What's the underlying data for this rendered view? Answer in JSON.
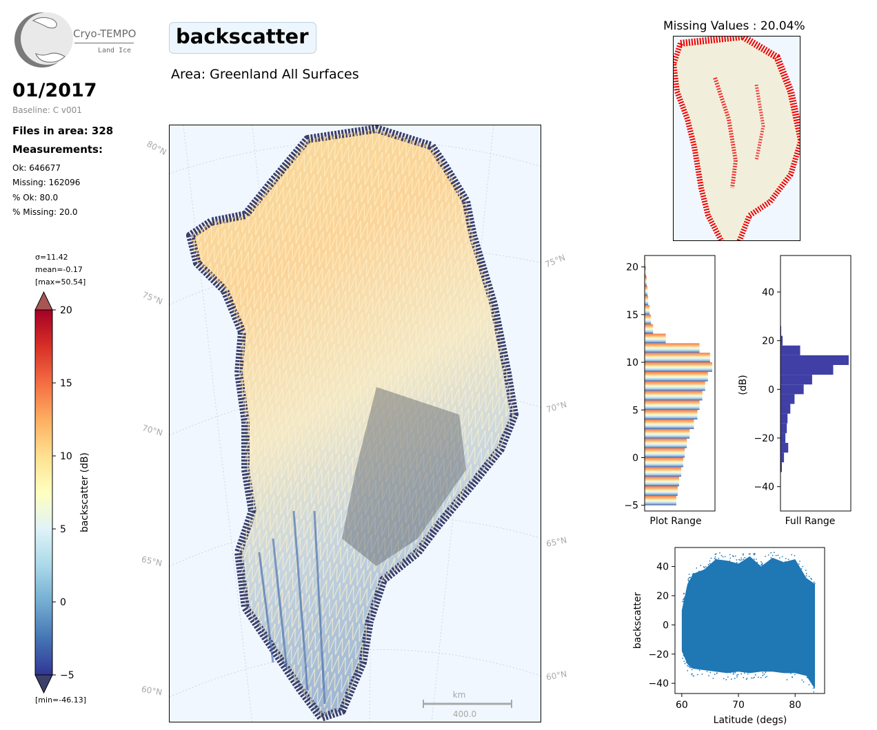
{
  "logo": {
    "name": "Cryo-TEMPO",
    "subtitle": "Land Ice",
    "icon": "globe-logo-icon"
  },
  "date": "01/2017",
  "baseline": "Baseline: C v001",
  "files_in_area": "Files in area: 328",
  "measurements_label": "Measurements:",
  "stats": {
    "ok": "Ok: 646677",
    "missing": "Missing: 162096",
    "pct_ok": "% Ok: 80.0",
    "pct_missing": "% Missing: 20.0"
  },
  "title": "backscatter",
  "area": "Area: Greenland All Surfaces",
  "colorbar": {
    "sigma": "σ=11.42",
    "mean": "mean=-0.17",
    "max": "[max=50.54]",
    "min": "[min=-46.13]",
    "label": "backscatter (dB)",
    "ticks": [
      "20",
      "15",
      "10",
      "5",
      "0",
      "−5"
    ],
    "range": [
      -5,
      20
    ]
  },
  "map": {
    "lat_labels_left": [
      "80°N",
      "75°N",
      "70°N",
      "65°N",
      "60°N"
    ],
    "lat_labels_right": [
      "75°N",
      "70°N",
      "65°N",
      "60°N"
    ],
    "scalebar_unit": "km",
    "scalebar_value": "400.0",
    "ocean_color": "#f0f7fe"
  },
  "missing_map": {
    "title": "Missing Values : 20.04%",
    "land_color": "#f1efdc",
    "missing_color": "#ee0000"
  },
  "chart_data": [
    {
      "type": "bar",
      "orientation": "horizontal",
      "xlabel": "Plot Range",
      "ylabel": "",
      "ylim": [
        -5.6,
        21.2
      ],
      "yticks": [
        -5,
        0,
        5,
        10,
        15,
        20
      ],
      "bins_y": [
        -5,
        -4,
        -3,
        -2,
        -1,
        0,
        1,
        2,
        3,
        4,
        5,
        6,
        7,
        8,
        9,
        10,
        11,
        12,
        13,
        14,
        15,
        16,
        17,
        18,
        19,
        20
      ],
      "counts": [
        0.45,
        0.47,
        0.49,
        0.52,
        0.55,
        0.57,
        0.6,
        0.64,
        0.7,
        0.75,
        0.78,
        0.82,
        0.86,
        0.9,
        0.96,
        0.93,
        0.78,
        0.3,
        0.12,
        0.09,
        0.07,
        0.05,
        0.04,
        0.03,
        0.02,
        0.01
      ]
    },
    {
      "type": "bar",
      "orientation": "horizontal",
      "xlabel": "Full Range",
      "ylabel": "(dB)",
      "ylim": [
        -50,
        55
      ],
      "yticks": [
        -40,
        -20,
        0,
        20,
        40
      ],
      "bins_y": [
        -34,
        -30,
        -26,
        -22,
        -18,
        -14,
        -10,
        -6,
        -2,
        2,
        6,
        10,
        14,
        18,
        22
      ],
      "counts": [
        0.02,
        0.05,
        0.11,
        0.07,
        0.09,
        0.1,
        0.14,
        0.2,
        0.33,
        0.45,
        0.75,
        0.97,
        0.28,
        0.03,
        0.01
      ]
    },
    {
      "type": "scatter",
      "xlabel": "Latitude (degs)",
      "ylabel": "backscatter",
      "xlim": [
        58.8,
        85.2
      ],
      "ylim": [
        -47,
        53
      ],
      "xticks": [
        60,
        70,
        80
      ],
      "yticks": [
        -40,
        -20,
        0,
        20,
        40
      ],
      "series": [
        {
          "color": "#1f77b4",
          "envelope": [
            {
              "x": 60,
              "low": -18,
              "high": 10
            },
            {
              "x": 61,
              "low": -27,
              "high": 28
            },
            {
              "x": 62,
              "low": -30,
              "high": 35
            },
            {
              "x": 64,
              "low": -31,
              "high": 38
            },
            {
              "x": 66,
              "low": -32,
              "high": 45
            },
            {
              "x": 68,
              "low": -33,
              "high": 44
            },
            {
              "x": 70,
              "low": -32,
              "high": 42
            },
            {
              "x": 72,
              "low": -33,
              "high": 47
            },
            {
              "x": 74,
              "low": -32,
              "high": 40
            },
            {
              "x": 76,
              "low": -32,
              "high": 46
            },
            {
              "x": 78,
              "low": -33,
              "high": 43
            },
            {
              "x": 80,
              "low": -33,
              "high": 45
            },
            {
              "x": 82,
              "low": -35,
              "high": 32
            },
            {
              "x": 83.5,
              "low": -44,
              "high": 28
            }
          ]
        }
      ]
    }
  ]
}
